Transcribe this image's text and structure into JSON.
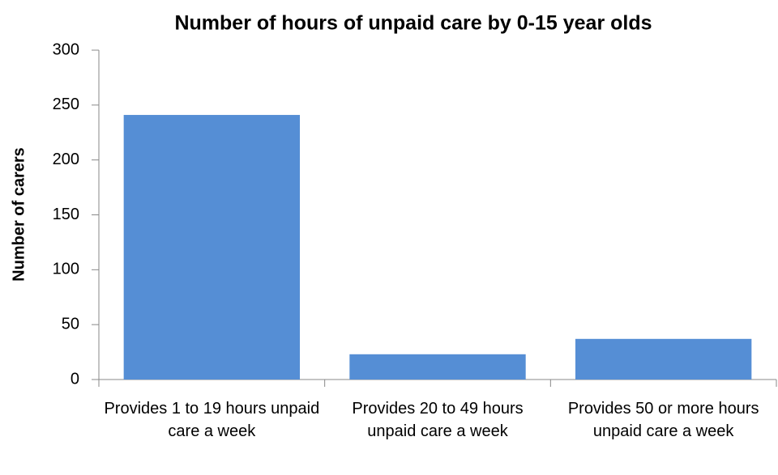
{
  "chart_data": {
    "type": "bar",
    "title": "Number of hours of unpaid care by 0-15 year olds",
    "y_label": "Number of carers",
    "categories": [
      "Provides 1 to 19 hours unpaid care a week",
      "Provides 20 to 49 hours unpaid care a week",
      "Provides 50 or more hours unpaid care a week"
    ],
    "values": [
      241,
      23,
      37
    ],
    "color": "#558ed5",
    "ylim": [
      0,
      300
    ],
    "yticks": [
      0,
      50,
      100,
      150,
      200,
      250,
      300
    ],
    "grid": false
  }
}
